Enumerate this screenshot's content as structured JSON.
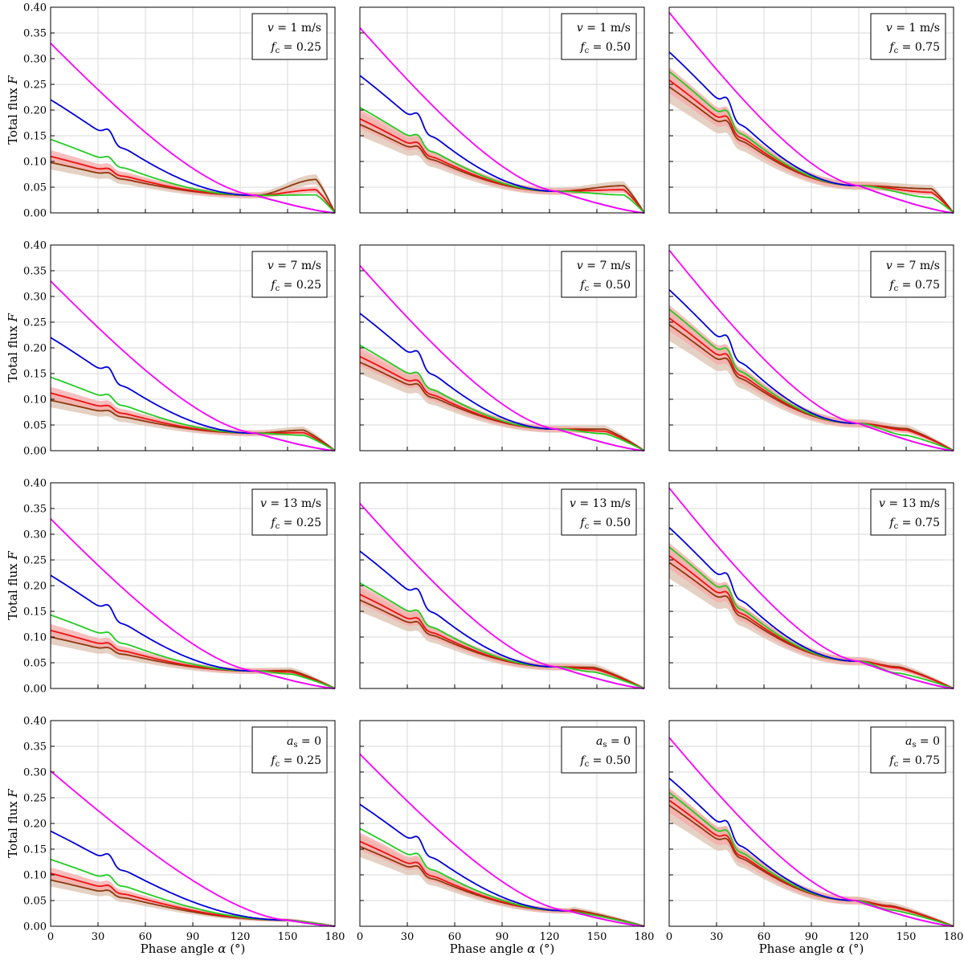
{
  "figure": {
    "ylabel_prefix": "Total flux ",
    "ylabel_var": "F",
    "xlabel_prefix": "Phase angle ",
    "xlabel_var": "α",
    "xlabel_unit": " (°)"
  },
  "colors": {
    "magenta": "#ff00ff",
    "blue": "#0000dd",
    "green": "#22cc22",
    "red": "#ee1111",
    "brown": "#8b3a0e",
    "band_red": "#f7a8a8",
    "band_brown": "#dcc2b0",
    "grid": "#d9d9d9"
  },
  "chart_data": {
    "type": "line",
    "xlabel": "Phase angle α (°)",
    "ylabel": "Total flux F",
    "xlim": [
      0,
      180
    ],
    "ylim": [
      0,
      0.4
    ],
    "xticks": [
      "0",
      "30",
      "60",
      "90",
      "120",
      "150",
      "180"
    ],
    "yticks": [
      "0.00",
      "0.05",
      "0.10",
      "0.15",
      "0.20",
      "0.25",
      "0.30",
      "0.35",
      "0.40"
    ],
    "series_names": [
      "magenta",
      "blue",
      "green",
      "red",
      "brown"
    ],
    "panels": [
      {
        "legend_line1": "v = 1 m/s",
        "legend_line2": "fc = 0.25",
        "magenta": 0.33,
        "blue": 0.22,
        "green": 0.143,
        "red": 0.11,
        "brown": 0.098,
        "cross_x": 130,
        "cross_y": 0.034,
        "bump_red": 0.045,
        "bump_brown": 0.065,
        "bump_green": 0.035,
        "bump_x": 168,
        "row": 0,
        "col": 0
      },
      {
        "legend_line1": "v = 1 m/s",
        "legend_line2": "fc = 0.50",
        "magenta": 0.36,
        "blue": 0.267,
        "green": 0.205,
        "red": 0.183,
        "brown": 0.172,
        "cross_x": 125,
        "cross_y": 0.042,
        "bump_red": 0.045,
        "bump_brown": 0.053,
        "bump_green": 0.035,
        "bump_x": 167,
        "row": 0,
        "col": 1
      },
      {
        "legend_line1": "v = 1 m/s",
        "legend_line2": "fc = 0.75",
        "magenta": 0.39,
        "blue": 0.313,
        "green": 0.275,
        "red": 0.258,
        "brown": 0.245,
        "cross_x": 120,
        "cross_y": 0.053,
        "bump_red": 0.04,
        "bump_brown": 0.047,
        "bump_green": 0.03,
        "bump_x": 166,
        "row": 0,
        "col": 2
      },
      {
        "legend_line1": "v = 7 m/s",
        "legend_line2": "fc = 0.25",
        "magenta": 0.33,
        "blue": 0.22,
        "green": 0.143,
        "red": 0.112,
        "brown": 0.098,
        "cross_x": 130,
        "cross_y": 0.034,
        "bump_red": 0.035,
        "bump_brown": 0.04,
        "bump_green": 0.03,
        "bump_x": 160,
        "row": 1,
        "col": 0
      },
      {
        "legend_line1": "v = 7 m/s",
        "legend_line2": "fc = 0.50",
        "magenta": 0.36,
        "blue": 0.267,
        "green": 0.205,
        "red": 0.183,
        "brown": 0.172,
        "cross_x": 125,
        "cross_y": 0.042,
        "bump_red": 0.038,
        "bump_brown": 0.042,
        "bump_green": 0.033,
        "bump_x": 155,
        "row": 1,
        "col": 1
      },
      {
        "legend_line1": "v = 7 m/s",
        "legend_line2": "fc = 0.75",
        "magenta": 0.39,
        "blue": 0.313,
        "green": 0.275,
        "red": 0.258,
        "brown": 0.245,
        "cross_x": 120,
        "cross_y": 0.053,
        "bump_red": 0.04,
        "bump_brown": 0.043,
        "bump_green": 0.03,
        "bump_x": 150,
        "row": 1,
        "col": 2
      },
      {
        "legend_line1": "v = 13 m/s",
        "legend_line2": "fc = 0.25",
        "magenta": 0.33,
        "blue": 0.22,
        "green": 0.143,
        "red": 0.113,
        "brown": 0.1,
        "cross_x": 130,
        "cross_y": 0.034,
        "bump_red": 0.032,
        "bump_brown": 0.035,
        "bump_green": 0.028,
        "bump_x": 152,
        "row": 2,
        "col": 0
      },
      {
        "legend_line1": "v = 13 m/s",
        "legend_line2": "fc = 0.50",
        "magenta": 0.36,
        "blue": 0.267,
        "green": 0.205,
        "red": 0.183,
        "brown": 0.172,
        "cross_x": 125,
        "cross_y": 0.042,
        "bump_red": 0.038,
        "bump_brown": 0.041,
        "bump_green": 0.032,
        "bump_x": 148,
        "row": 2,
        "col": 1
      },
      {
        "legend_line1": "v = 13 m/s",
        "legend_line2": "fc = 0.75",
        "magenta": 0.39,
        "blue": 0.313,
        "green": 0.275,
        "red": 0.258,
        "brown": 0.245,
        "cross_x": 120,
        "cross_y": 0.053,
        "bump_red": 0.04,
        "bump_brown": 0.042,
        "bump_green": 0.03,
        "bump_x": 145,
        "row": 2,
        "col": 2
      },
      {
        "legend_line1": "as = 0",
        "legend_line2": "fc = 0.25",
        "magenta": 0.302,
        "blue": 0.185,
        "green": 0.13,
        "red": 0.103,
        "brown": 0.09,
        "cross_x": 150,
        "cross_y": 0.012,
        "bump_red": 0.012,
        "bump_brown": 0.012,
        "bump_green": 0.012,
        "bump_x": 150,
        "row": 3,
        "col": 0
      },
      {
        "legend_line1": "as = 0",
        "legend_line2": "fc = 0.50",
        "magenta": 0.335,
        "blue": 0.237,
        "green": 0.19,
        "red": 0.165,
        "brown": 0.155,
        "cross_x": 132,
        "cross_y": 0.03,
        "bump_red": 0.03,
        "bump_brown": 0.032,
        "bump_green": 0.028,
        "bump_x": 135,
        "row": 3,
        "col": 1
      },
      {
        "legend_line1": "as = 0",
        "legend_line2": "fc = 0.75",
        "magenta": 0.367,
        "blue": 0.288,
        "green": 0.26,
        "red": 0.245,
        "brown": 0.235,
        "cross_x": 118,
        "cross_y": 0.05,
        "bump_red": 0.038,
        "bump_brown": 0.04,
        "bump_green": 0.032,
        "bump_x": 140,
        "row": 3,
        "col": 2
      }
    ]
  }
}
